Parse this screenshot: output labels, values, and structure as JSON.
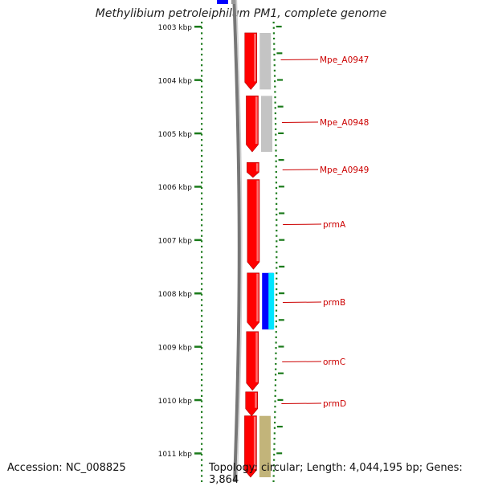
{
  "title": "Methylibium petroleiphilum PM1, complete genome",
  "accession": "Accession: NC_008825",
  "topology": "Topology: circular; Length: 4,044,195 bp; Genes: 3,864",
  "ruler_unit": "kbp",
  "ruler": {
    "start_kbp": 1003,
    "end_kbp": 1011,
    "labels": [
      "1003 kbp",
      "1004 kbp",
      "1005 kbp",
      "1006 kbp",
      "1007 kbp",
      "1008 kbp",
      "1009 kbp",
      "1010 kbp",
      "1011 kbp"
    ]
  },
  "colors": {
    "backbone": "#777777",
    "gene_red": "#ff0000",
    "gene_grey": "#c4c4c4",
    "gene_blue": "#0000ff",
    "gene_cyan": "#00e5ff",
    "gene_olive": "#c2b47a",
    "tick_green": "#1a7a1a",
    "label_red": "#cc0000"
  },
  "genes": [
    {
      "label": "Mpe_A0947",
      "start_kbp": 1003.12,
      "end_kbp": 1004.18
    },
    {
      "label": "Mpe_A0948",
      "start_kbp": 1004.3,
      "end_kbp": 1005.35
    },
    {
      "label": "Mpe_A0949",
      "start_kbp": 1005.55,
      "end_kbp": 1005.83
    },
    {
      "label": "prmA",
      "start_kbp": 1005.87,
      "end_kbp": 1007.55
    },
    {
      "label": "prmB",
      "start_kbp": 1007.62,
      "end_kbp": 1008.68
    },
    {
      "label": "ormC",
      "start_kbp": 1008.72,
      "end_kbp": 1009.82
    },
    {
      "label": "prmD",
      "start_kbp": 1009.85,
      "end_kbp": 1010.3
    },
    {
      "label": "",
      "start_kbp": 1010.3,
      "end_kbp": 1011.45
    }
  ],
  "features": [
    {
      "kind": "grey",
      "start_kbp": 1003.12,
      "end_kbp": 1004.18
    },
    {
      "kind": "grey",
      "start_kbp": 1004.3,
      "end_kbp": 1005.35
    },
    {
      "kind": "blue",
      "start_kbp": 1007.62,
      "end_kbp": 1008.68
    },
    {
      "kind": "olive",
      "start_kbp": 1010.3,
      "end_kbp": 1011.45
    }
  ]
}
